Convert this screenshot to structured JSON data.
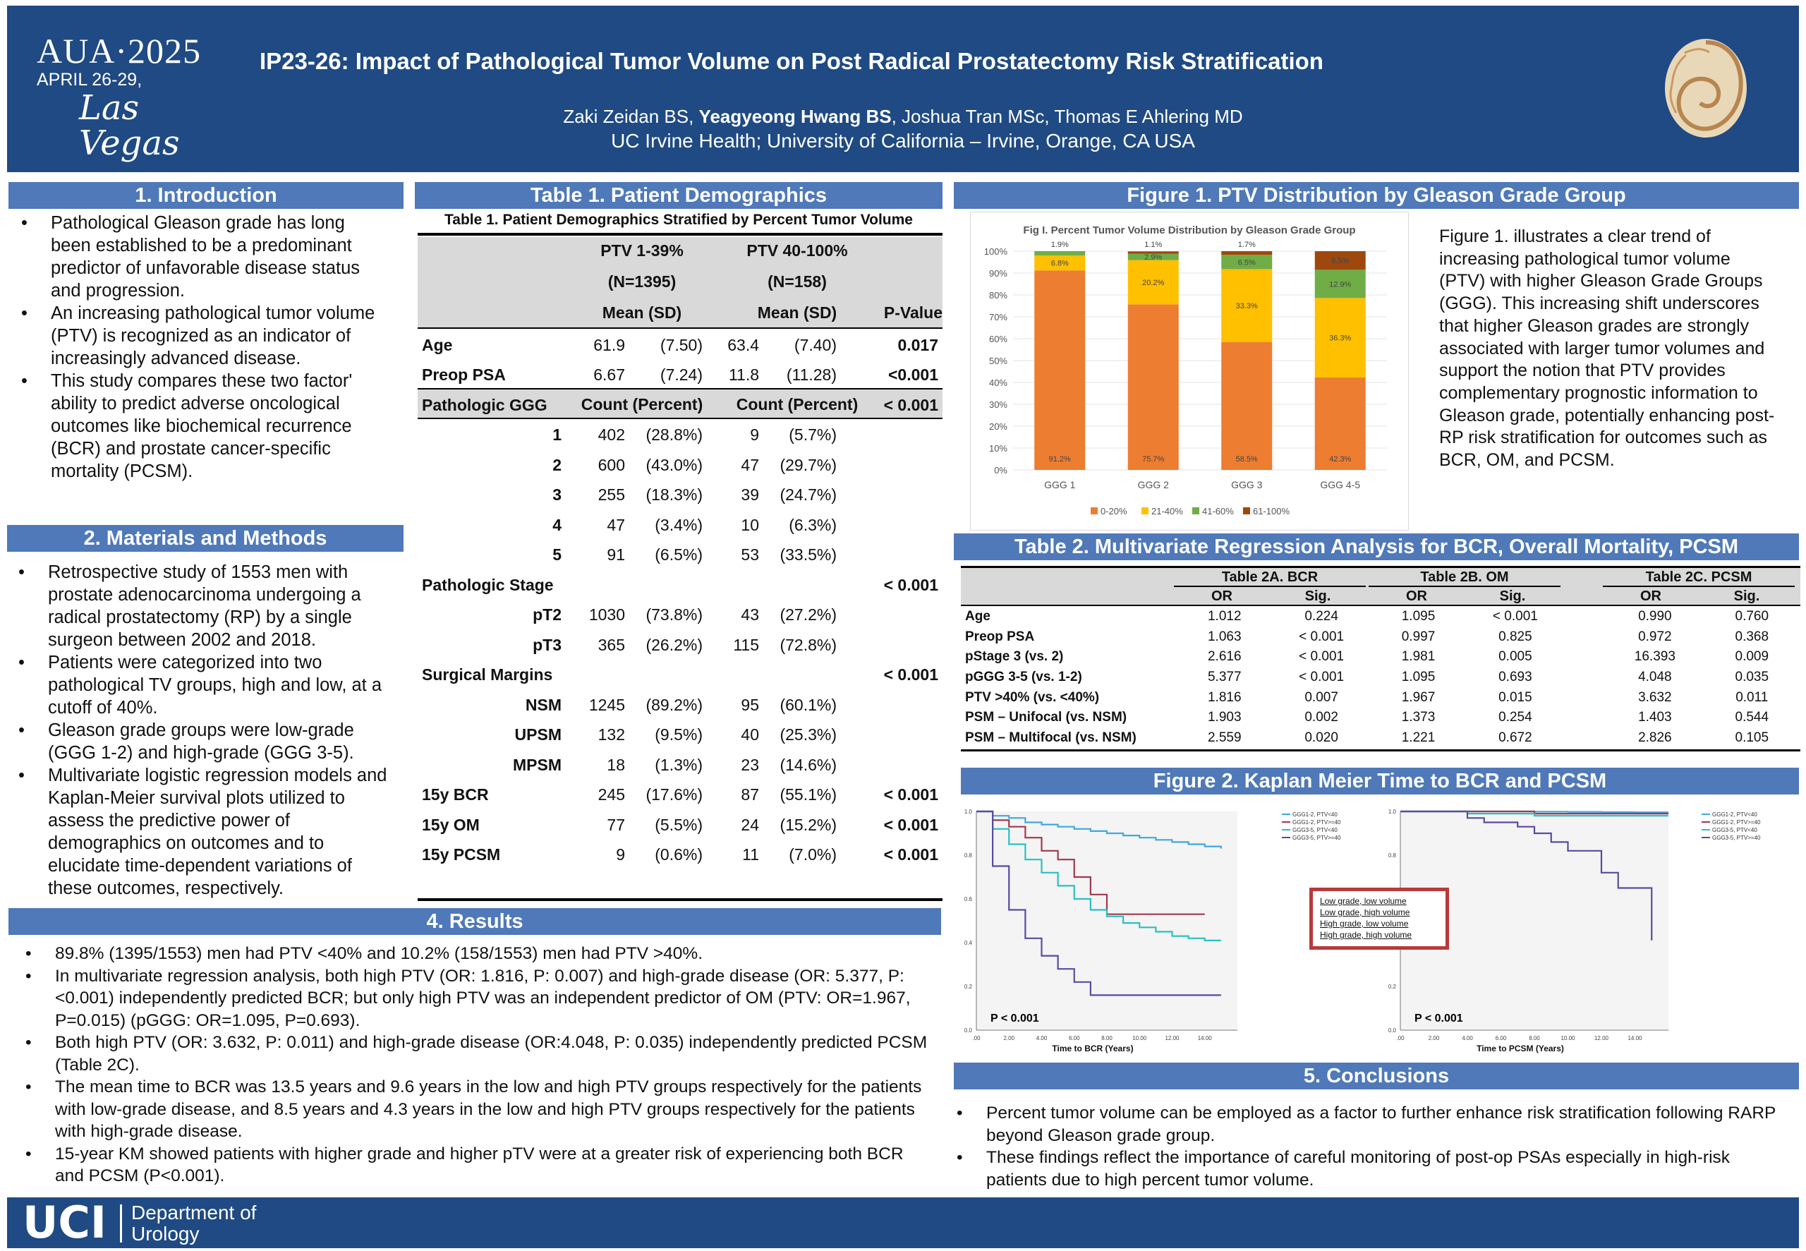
{
  "header": {
    "logo_line1": "AUA·2025",
    "logo_line2": "APRIL 26-29,",
    "logo_line3": "Las Vegas",
    "title": "IP23-26: Impact of Pathological Tumor Volume on Post Radical Prostatectomy Risk Stratification",
    "author1": "Zaki Zeidan BS, ",
    "author2": "Yeagyeong Hwang BS",
    "author3": ", Joshua Tran MSc, Thomas E Ahlering MD",
    "affiliation": "UC Irvine Health; University of California – Irvine, Orange, CA USA"
  },
  "intro": {
    "heading": "1. Introduction",
    "bullets": [
      "Pathological Gleason grade has long been established to be a predominant predictor of unfavorable disease status and progression.",
      "An increasing pathological tumor volume (PTV) is recognized as an indicator of increasingly advanced disease.",
      "This study compares these two factor' ability to predict adverse oncological outcomes like biochemical recurrence (BCR) and prostate cancer-specific mortality (PCSM)."
    ]
  },
  "methods": {
    "heading": "2. Materials and Methods",
    "bullets": [
      "Retrospective study of 1553 men with prostate adenocarcinoma undergoing a radical prostatectomy (RP) by a single surgeon between 2002 and 2018.",
      "Patients were categorized into two pathological TV groups, high and low, at a cutoff of 40%.",
      "Gleason grade groups were low-grade (GGG 1-2) and high-grade (GGG 3-5).",
      "Multivariate logistic regression models and Kaplan-Meier survival plots utilized to assess the predictive power of demographics on outcomes and to elucidate time-dependent variations of these outcomes, respectively."
    ]
  },
  "table1": {
    "heading": "Table 1. Patient Demographics",
    "caption": "Table 1. Patient Demographics Stratified by Percent Tumor Volume",
    "group1": "PTV 1-39%",
    "group1_n": "(N=1395)",
    "group2": "PTV 40-100%",
    "group2_n": "(N=158)",
    "mean_sd": "Mean (SD)",
    "pvalue": "P-Value",
    "count_pct": "Count (Percent)",
    "rows": [
      {
        "label": "Age",
        "a": "61.9",
        "b": "(7.50)",
        "c": "63.4",
        "d": "(7.40)",
        "p": "0.017"
      },
      {
        "label": "Preop PSA",
        "a": "6.67",
        "b": "(7.24)",
        "c": "11.8",
        "d": "(11.28)",
        "p": "<0.001"
      },
      {
        "label": "Pathologic GGG",
        "a": "",
        "b": "",
        "c": "",
        "d": "",
        "p": "< 0.001"
      },
      {
        "label": "1",
        "a": "402",
        "b": "(28.8%)",
        "c": "9",
        "d": "(5.7%)",
        "p": ""
      },
      {
        "label": "2",
        "a": "600",
        "b": "(43.0%)",
        "c": "47",
        "d": "(29.7%)",
        "p": ""
      },
      {
        "label": "3",
        "a": "255",
        "b": "(18.3%)",
        "c": "39",
        "d": "(24.7%)",
        "p": ""
      },
      {
        "label": "4",
        "a": "47",
        "b": "(3.4%)",
        "c": "10",
        "d": "(6.3%)",
        "p": ""
      },
      {
        "label": "5",
        "a": "91",
        "b": "(6.5%)",
        "c": "53",
        "d": "(33.5%)",
        "p": ""
      },
      {
        "label": "Pathologic Stage",
        "a": "",
        "b": "",
        "c": "",
        "d": "",
        "p": "< 0.001"
      },
      {
        "label": "pT2",
        "a": "1030",
        "b": "(73.8%)",
        "c": "43",
        "d": "(27.2%)",
        "p": ""
      },
      {
        "label": "pT3",
        "a": "365",
        "b": "(26.2%)",
        "c": "115",
        "d": "(72.8%)",
        "p": ""
      },
      {
        "label": "Surgical Margins",
        "a": "",
        "b": "",
        "c": "",
        "d": "",
        "p": "< 0.001"
      },
      {
        "label": "NSM",
        "a": "1245",
        "b": "(89.2%)",
        "c": "95",
        "d": "(60.1%)",
        "p": ""
      },
      {
        "label": "UPSM",
        "a": "132",
        "b": "(9.5%)",
        "c": "40",
        "d": "(25.3%)",
        "p": ""
      },
      {
        "label": "MPSM",
        "a": "18",
        "b": "(1.3%)",
        "c": "23",
        "d": "(14.6%)",
        "p": ""
      },
      {
        "label": "15y BCR",
        "a": "245",
        "b": "(17.6%)",
        "c": "87",
        "d": "(55.1%)",
        "p": "< 0.001"
      },
      {
        "label": "15y OM",
        "a": "77",
        "b": "(5.5%)",
        "c": "24",
        "d": "(15.2%)",
        "p": "< 0.001"
      },
      {
        "label": "15y PCSM",
        "a": "9",
        "b": "(0.6%)",
        "c": "11",
        "d": "(7.0%)",
        "p": "< 0.001"
      }
    ]
  },
  "figure1": {
    "heading": "Figure 1. PTV Distribution by Gleason Grade Group",
    "description": "Figure 1. illustrates a clear trend of increasing pathological tumor volume (PTV) with higher Gleason Grade Groups (GGG). This increasing shift underscores that higher Gleason grades are strongly associated with larger tumor volumes and support the notion that PTV provides complementary prognostic information to Gleason grade, potentially enhancing post-RP risk stratification for outcomes such as BCR, OM, and PCSM."
  },
  "chart_data": [
    {
      "type": "bar",
      "stacked": true,
      "title": "Fig I. Percent Tumor Volume Distribution by Gleason Grade Group",
      "categories": [
        "GGG 1",
        "GGG 2",
        "GGG 3",
        "GGG 4-5"
      ],
      "series": [
        {
          "name": "0-20%",
          "color": "#ed7d31",
          "values": [
            91.2,
            75.7,
            58.5,
            42.3
          ],
          "labels": [
            "91.2%",
            "75.7%",
            "58.5%",
            "42.3%"
          ]
        },
        {
          "name": "21-40%",
          "color": "#ffc000",
          "values": [
            6.8,
            20.2,
            33.3,
            36.3
          ],
          "labels": [
            "6.8%",
            "20.2%",
            "33.3%",
            "36.3%"
          ]
        },
        {
          "name": "41-60%",
          "color": "#70ad47",
          "values": [
            1.9,
            2.9,
            6.5,
            12.9
          ],
          "labels": [
            "",
            "2.9%",
            "6.5%",
            "12.9%"
          ]
        },
        {
          "name": "61-100%",
          "color": "#9e480e",
          "values": [
            0.1,
            1.1,
            1.7,
            8.5
          ],
          "labels": [
            "",
            "",
            "",
            "8.5%"
          ]
        }
      ],
      "top_labels": [
        "1.9%",
        "1.1%",
        "1.7%",
        ""
      ],
      "yticks": [
        "0%",
        "10%",
        "20%",
        "30%",
        "40%",
        "50%",
        "60%",
        "70%",
        "80%",
        "90%",
        "100%"
      ],
      "ylim": [
        0,
        100
      ],
      "legend": "bottom"
    },
    {
      "type": "line",
      "title": "",
      "xlabel": "Time to BCR (Years)",
      "xticks": [
        ".00",
        "2.00",
        "4.00",
        "6.00",
        "8.00",
        "10.00",
        "12.00",
        "14.00"
      ],
      "yticks": [
        "0.0",
        "0.2",
        "0.4",
        "0.6",
        "0.8",
        "1.0"
      ],
      "xlim": [
        0,
        16
      ],
      "ylim": [
        0,
        1
      ],
      "annotation": "P < 0.001",
      "series": [
        {
          "name": "GGG1-2, PTV<40",
          "color": "#3fa7e0",
          "x": [
            0,
            1,
            2,
            3,
            4,
            5,
            6,
            7,
            8,
            9,
            10,
            11,
            12,
            13,
            14,
            15
          ],
          "y": [
            1.0,
            0.98,
            0.97,
            0.95,
            0.94,
            0.93,
            0.92,
            0.91,
            0.9,
            0.89,
            0.88,
            0.87,
            0.86,
            0.85,
            0.84,
            0.83
          ]
        },
        {
          "name": "GGG1-2, PTV>=40",
          "color": "#a0384f",
          "x": [
            0,
            1,
            2,
            3,
            4,
            5,
            6,
            7,
            8,
            9,
            10,
            11,
            12,
            13,
            14
          ],
          "y": [
            1.0,
            0.96,
            0.93,
            0.88,
            0.82,
            0.78,
            0.7,
            0.62,
            0.53,
            0.53,
            0.53,
            0.53,
            0.53,
            0.53,
            0.53
          ]
        },
        {
          "name": "GGG3-5, PTV<40",
          "color": "#2bbfc0",
          "x": [
            0,
            1,
            2,
            3,
            4,
            5,
            6,
            7,
            8,
            9,
            10,
            11,
            12,
            13,
            14,
            15
          ],
          "y": [
            1.0,
            0.92,
            0.85,
            0.78,
            0.72,
            0.66,
            0.6,
            0.55,
            0.52,
            0.49,
            0.47,
            0.45,
            0.43,
            0.42,
            0.41,
            0.41
          ]
        },
        {
          "name": "GGG3-5, PTV>=40",
          "color": "#5a4aa0",
          "x": [
            0,
            1,
            2,
            3,
            4,
            5,
            6,
            7,
            8,
            9,
            10,
            11,
            12,
            13,
            14,
            15
          ],
          "y": [
            1.0,
            0.75,
            0.55,
            0.42,
            0.34,
            0.28,
            0.22,
            0.16,
            0.16,
            0.16,
            0.16,
            0.16,
            0.16,
            0.16,
            0.16,
            0.16
          ]
        }
      ]
    },
    {
      "type": "line",
      "title": "",
      "xlabel": "Time to PCSM (Years)",
      "xticks": [
        ".00",
        "2.00",
        "4.00",
        "6.00",
        "8.00",
        "10.00",
        "12.00",
        "14.00"
      ],
      "yticks": [
        "0.0",
        "0.2",
        "0.4",
        "0.6",
        "0.8",
        "1.0"
      ],
      "xlim": [
        0,
        16
      ],
      "ylim": [
        0,
        1
      ],
      "annotation": "P < 0.001",
      "series": [
        {
          "name": "GGG1-2, PTV<40",
          "color": "#3fa7e0",
          "x": [
            0,
            2,
            4,
            6,
            8,
            10,
            12,
            14,
            16
          ],
          "y": [
            1.0,
            1.0,
            1.0,
            1.0,
            0.999,
            0.998,
            0.997,
            0.996,
            0.996
          ]
        },
        {
          "name": "GGG1-2, PTV>=40",
          "color": "#a0384f",
          "x": [
            0,
            2,
            4,
            6,
            8,
            10,
            12,
            14,
            16
          ],
          "y": [
            1.0,
            1.0,
            1.0,
            1.0,
            0.99,
            0.99,
            0.99,
            0.99,
            0.99
          ]
        },
        {
          "name": "GGG3-5, PTV<40",
          "color": "#2bbfc0",
          "x": [
            0,
            2,
            4,
            6,
            8,
            10,
            12,
            14,
            16
          ],
          "y": [
            1.0,
            1.0,
            0.99,
            0.99,
            0.98,
            0.98,
            0.98,
            0.98,
            0.98
          ]
        },
        {
          "name": "GGG3-5, PTV>=40",
          "color": "#5a4aa0",
          "x": [
            0,
            2,
            4,
            5,
            6,
            7,
            8,
            9,
            10,
            11,
            12,
            13,
            14,
            15
          ],
          "y": [
            1.0,
            1.0,
            0.97,
            0.95,
            0.95,
            0.93,
            0.9,
            0.86,
            0.82,
            0.82,
            0.72,
            0.65,
            0.65,
            0.41
          ]
        }
      ]
    }
  ],
  "table2": {
    "heading": "Table 2. Multivariate Regression Analysis for BCR, Overall Mortality, PCSM",
    "group_a": "Table 2A. BCR",
    "group_b": "Table 2B. OM",
    "group_c": "Table 2C. PCSM",
    "or_label": "OR",
    "sig_label": "Sig.",
    "rows": [
      {
        "label": "Age",
        "v": [
          "1.012",
          "0.224",
          "1.095",
          "< 0.001",
          "0.990",
          "0.760"
        ]
      },
      {
        "label": "Preop PSA",
        "v": [
          "1.063",
          "< 0.001",
          "0.997",
          "0.825",
          "0.972",
          "0.368"
        ]
      },
      {
        "label": "pStage 3 (vs. 2)",
        "v": [
          "2.616",
          "< 0.001",
          "1.981",
          "0.005",
          "16.393",
          "0.009"
        ]
      },
      {
        "label": "pGGG 3-5 (vs. 1-2)",
        "v": [
          "5.377",
          "< 0.001",
          "1.095",
          "0.693",
          "4.048",
          "0.035"
        ]
      },
      {
        "label": "PTV >40% (vs. <40%)",
        "v": [
          "1.816",
          "0.007",
          "1.967",
          "0.015",
          "3.632",
          "0.011"
        ]
      },
      {
        "label": "PSM – Unifocal (vs. NSM)",
        "v": [
          "1.903",
          "0.002",
          "1.373",
          "0.254",
          "1.403",
          "0.544"
        ]
      },
      {
        "label": "PSM – Multifocal (vs. NSM)",
        "v": [
          "2.559",
          "0.020",
          "1.221",
          "0.672",
          "2.826",
          "0.105"
        ]
      }
    ]
  },
  "figure2": {
    "heading": "Figure 2. Kaplan Meier Time to BCR and PCSM",
    "legend_box": [
      "Low grade, low volume",
      "Low grade, high volume",
      "High grade, low volume",
      "High grade, high volume"
    ],
    "legend_color": "#b83a3a"
  },
  "results": {
    "heading": "4. Results",
    "bullets": [
      "89.8% (1395/1553) men had PTV <40% and 10.2% (158/1553) men had PTV >40%.",
      "In multivariate regression analysis, both high PTV (OR: 1.816, P: 0.007) and high-grade disease (OR: 5.377, P: <0.001) independently predicted BCR; but only high PTV was an independent predictor of OM (PTV: OR=1.967, P=0.015) (pGGG: OR=1.095, P=0.693).",
      "Both high PTV (OR: 3.632, P: 0.011) and high-grade disease (OR:4.048, P: 0.035) independently predicted PCSM (Table 2C).",
      "The mean time to BCR was 13.5 years and 9.6 years in the low and high PTV groups respectively for the patients with low-grade disease, and 8.5 years and 4.3 years in the low and high PTV groups respectively for the patients with high-grade disease.",
      "15-year KM showed patients with higher grade and higher pTV were at a greater risk of experiencing both BCR and PCSM (P<0.001)."
    ]
  },
  "conclusions": {
    "heading": "5. Conclusions",
    "bullets": [
      "Percent tumor volume can be employed as a factor to further enhance risk stratification following RARP beyond Gleason grade group.",
      "These findings reflect the importance of careful monitoring of post-op PSAs especially in high-risk patients due to high percent tumor volume."
    ]
  },
  "footer": {
    "logo": "UCI",
    "dept_line1": "Department of",
    "dept_line2": "Urology"
  },
  "colors": {
    "header_bg": "#1f4a83",
    "section_bg": "#4f79b8"
  }
}
